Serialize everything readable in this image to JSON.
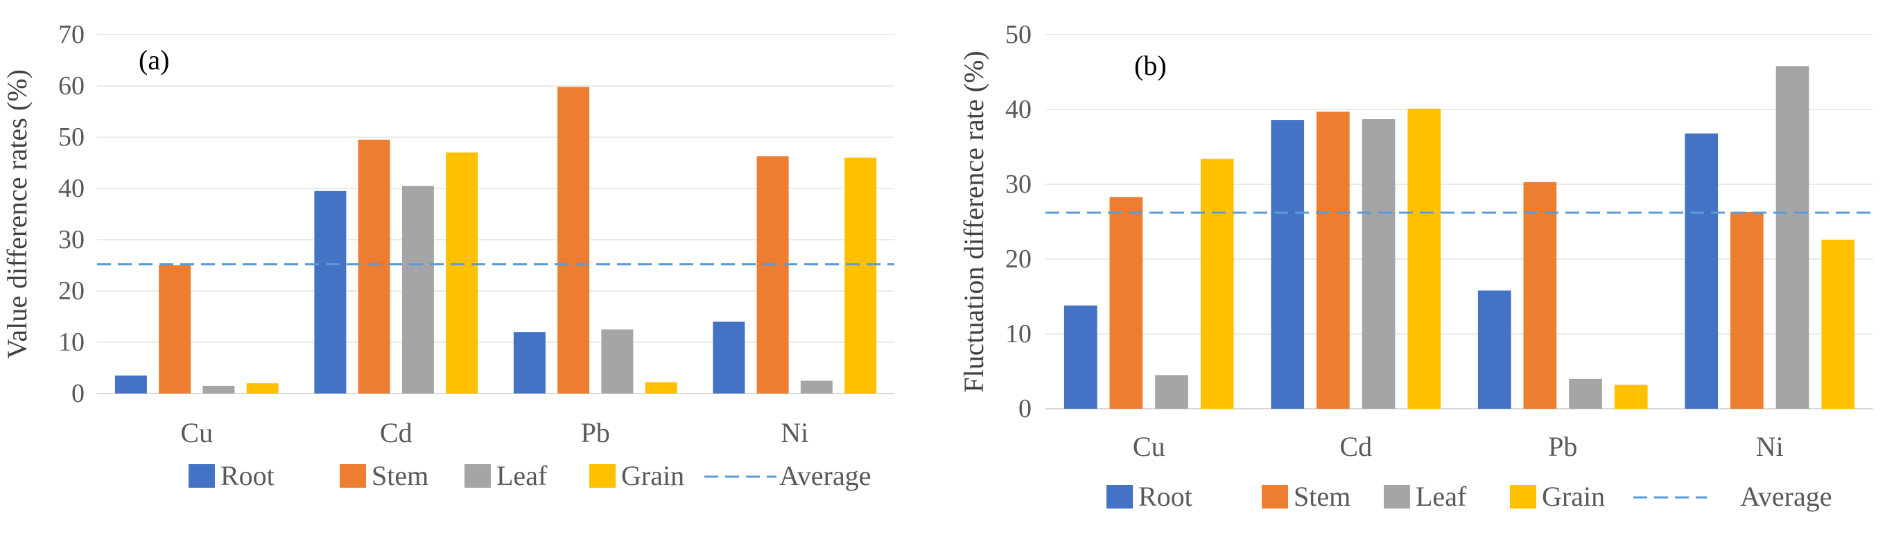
{
  "chart_data": [
    {
      "type": "bar",
      "panel_label": "(a)",
      "title": "",
      "xlabel": "",
      "ylabel": "Value difference rates (%)",
      "ylim": [
        0,
        70
      ],
      "yticks": [
        "0",
        "10",
        "20",
        "30",
        "40",
        "50",
        "60",
        "70"
      ],
      "categories": [
        "Cu",
        "Cd",
        "Pb",
        "Ni"
      ],
      "grid": true,
      "legend_position": "bottom",
      "series": [
        {
          "name": "Root",
          "color": "#4472C4",
          "values": [
            3.5,
            39.5,
            12.0,
            14.0
          ]
        },
        {
          "name": "Stem",
          "color": "#ED7D31",
          "values": [
            25.0,
            49.5,
            59.8,
            46.3
          ]
        },
        {
          "name": "Leaf",
          "color": "#A5A5A5",
          "values": [
            1.5,
            40.5,
            12.5,
            2.5
          ]
        },
        {
          "name": "Grain",
          "color": "#FFC000",
          "values": [
            2.0,
            47.0,
            2.2,
            46.0
          ]
        }
      ],
      "average": {
        "name": "Average",
        "value": 25.2,
        "color": "#5B9BD5"
      }
    },
    {
      "type": "bar",
      "panel_label": "(b)",
      "title": "",
      "xlabel": "",
      "ylabel": "Fluctuation difference rate (%)",
      "ylim": [
        0,
        50
      ],
      "yticks": [
        "0",
        "10",
        "20",
        "30",
        "40",
        "50"
      ],
      "categories": [
        "Cu",
        "Cd",
        "Pb",
        "Ni"
      ],
      "grid": true,
      "legend_position": "bottom",
      "series": [
        {
          "name": "Root",
          "color": "#4472C4",
          "values": [
            13.8,
            38.6,
            15.8,
            36.8
          ]
        },
        {
          "name": "Stem",
          "color": "#ED7D31",
          "values": [
            28.3,
            39.7,
            30.3,
            26.3
          ]
        },
        {
          "name": "Leaf",
          "color": "#A5A5A5",
          "values": [
            4.5,
            38.7,
            4.0,
            45.8
          ]
        },
        {
          "name": "Grain",
          "color": "#FFC000",
          "values": [
            33.4,
            40.1,
            3.2,
            22.6
          ]
        }
      ],
      "average": {
        "name": "Average",
        "value": 26.2,
        "color": "#5B9BD5"
      }
    }
  ]
}
